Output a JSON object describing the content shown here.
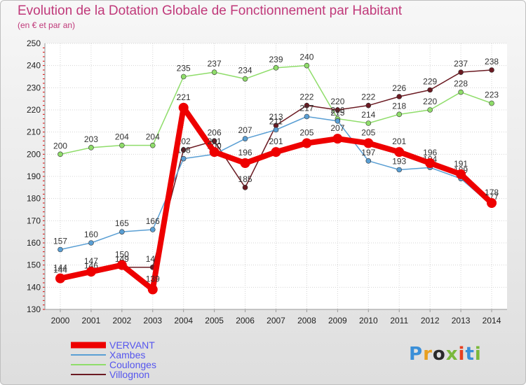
{
  "title": "Evolution de la Dotation Globale de Fonctionnement par Habitant",
  "subtitle": "(en € et par an)",
  "logo": {
    "text": "Proxiti",
    "colors": [
      "#3a8fd8",
      "#e8a020",
      "#2a2a2a",
      "#7ab83a",
      "#e84020",
      "#3a8fd8",
      "#7ab83a"
    ]
  },
  "chart_data": {
    "type": "line",
    "x": [
      "2000",
      "2001",
      "2002",
      "2003",
      "2004",
      "2005",
      "2006",
      "2007",
      "2008",
      "2009",
      "2010",
      "2011",
      "2012",
      "2013",
      "2014"
    ],
    "ylim": [
      130,
      250
    ],
    "yticks": [
      130,
      140,
      150,
      160,
      170,
      180,
      190,
      200,
      210,
      220,
      230,
      240,
      250
    ],
    "grid": true,
    "series": [
      {
        "name": "Coulonges",
        "color": "#8fdd6a",
        "values": [
          200,
          203,
          204,
          204,
          235,
          237,
          234,
          239,
          240,
          216,
          214,
          218,
          220,
          228,
          223
        ]
      },
      {
        "name": "Villognon",
        "color": "#6b1a22",
        "values": [
          144,
          146,
          149,
          149,
          202,
          206,
          185,
          213,
          222,
          220,
          222,
          226,
          229,
          237,
          238
        ]
      },
      {
        "name": "Xambes",
        "color": "#5a9fd4",
        "values": [
          157,
          160,
          165,
          166,
          198,
          200,
          207,
          211,
          217,
          215,
          197,
          193,
          194,
          189,
          177
        ]
      },
      {
        "name": "VERVANT",
        "color": "#ee0000",
        "values": [
          144,
          147,
          150,
          139,
          221,
          201,
          196,
          201,
          205,
          207,
          205,
          201,
          196,
          191,
          178
        ]
      }
    ],
    "legend": {
      "position": "bottom-left",
      "entries": [
        {
          "name": "VERVANT",
          "color": "#ee0000",
          "text_color": "#5555ee"
        },
        {
          "name": "Xambes",
          "color": "#5a9fd4",
          "text_color": "#5555ee"
        },
        {
          "name": "Coulonges",
          "color": "#8fdd6a",
          "text_color": "#5555ee"
        },
        {
          "name": "Villognon",
          "color": "#6b1a22",
          "text_color": "#5555ee"
        }
      ]
    }
  }
}
